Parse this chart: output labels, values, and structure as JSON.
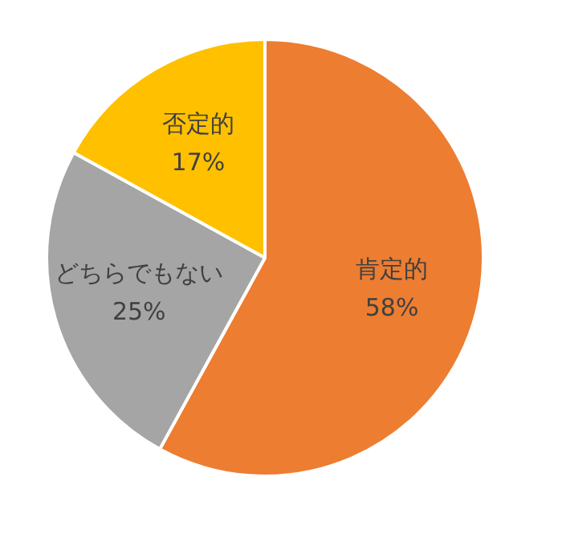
{
  "chart_data": {
    "type": "pie",
    "categories": [
      "肯定的",
      "どちらでもない",
      "否定的"
    ],
    "values": [
      58,
      25,
      17
    ],
    "colors": [
      "#ed7d31",
      "#a5a5a5",
      "#ffc000"
    ],
    "value_labels": [
      "58%",
      "25%",
      "17%"
    ],
    "legend": false
  }
}
